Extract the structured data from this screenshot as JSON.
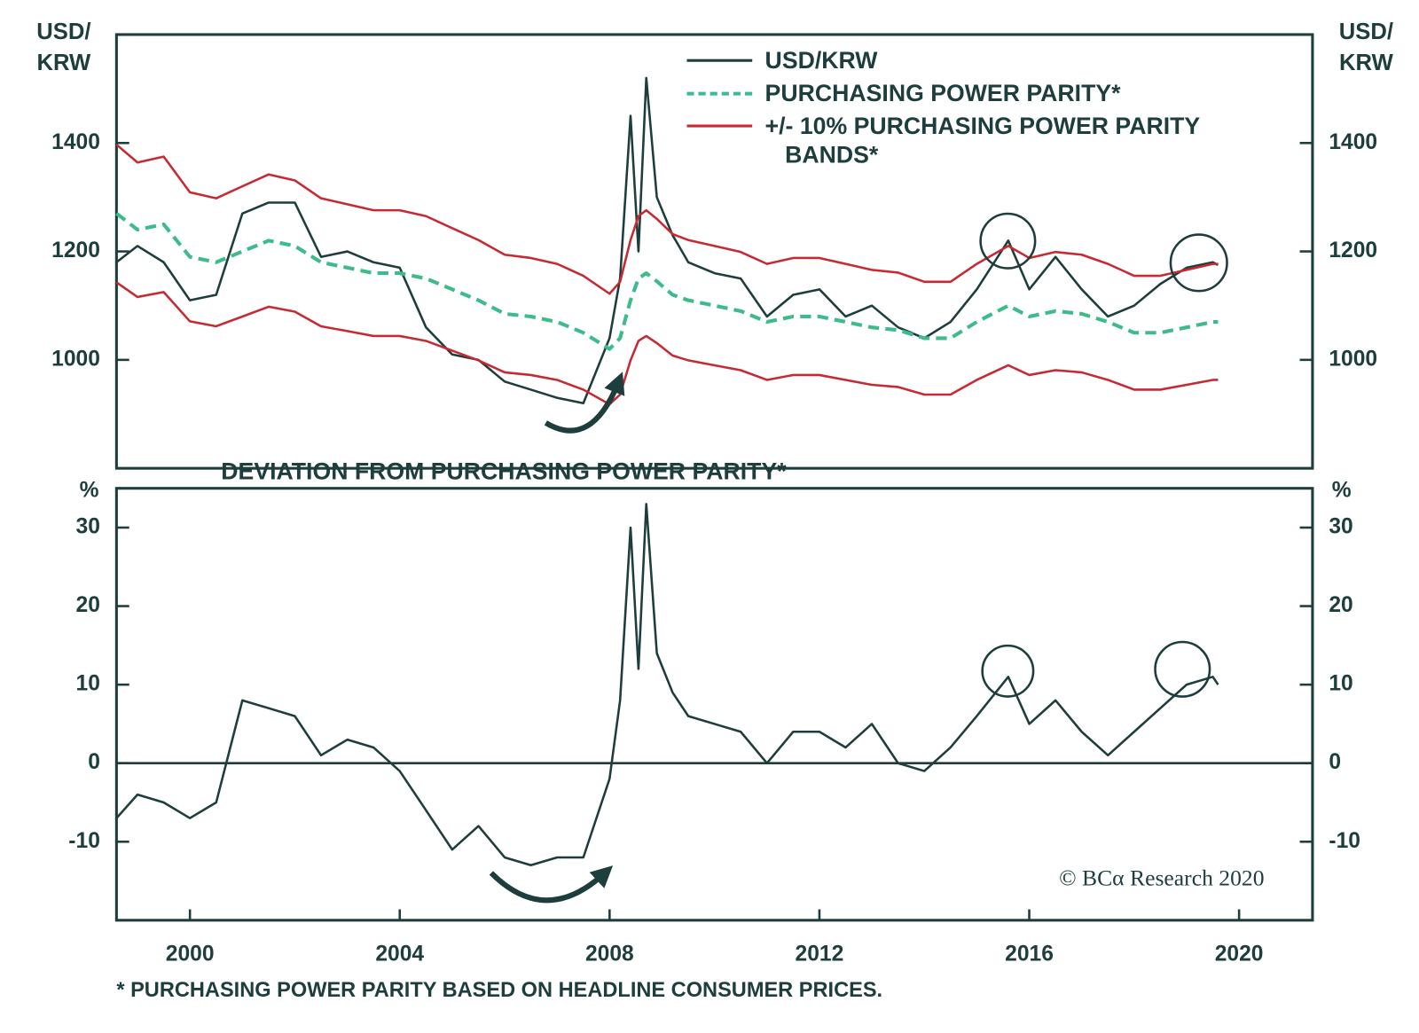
{
  "chart_data": [
    {
      "type": "line",
      "y_label": "USD/\nKRW",
      "xlim": [
        1998.6,
        2021.4
      ],
      "ylim": [
        800,
        1600
      ],
      "yticks": [
        1000,
        1200,
        1400
      ],
      "x": [
        1998.6,
        1999,
        1999.5,
        2000,
        2000.5,
        2001,
        2001.5,
        2002,
        2002.5,
        2003,
        2003.5,
        2004,
        2004.5,
        2005,
        2005.5,
        2006,
        2006.5,
        2007,
        2007.5,
        2008,
        2008.2,
        2008.4,
        2008.55,
        2008.7,
        2008.9,
        2009.2,
        2009.5,
        2010,
        2010.5,
        2011,
        2011.5,
        2012,
        2012.5,
        2013,
        2013.5,
        2014,
        2014.5,
        2015,
        2015.6,
        2016,
        2016.5,
        2017,
        2017.5,
        2018,
        2018.5,
        2019,
        2019.5,
        2019.6
      ],
      "series": [
        {
          "name": "USD/KRW",
          "color": "#1e3d3d",
          "dashed": false,
          "values": [
            1180,
            1210,
            1180,
            1110,
            1120,
            1270,
            1290,
            1290,
            1190,
            1200,
            1180,
            1170,
            1060,
            1010,
            1000,
            960,
            945,
            930,
            920,
            1040,
            1150,
            1450,
            1200,
            1520,
            1300,
            1230,
            1180,
            1160,
            1150,
            1080,
            1120,
            1130,
            1080,
            1100,
            1060,
            1040,
            1070,
            1130,
            1220,
            1130,
            1190,
            1130,
            1080,
            1100,
            1140,
            1170,
            1180,
            1175
          ]
        },
        {
          "name": "PURCHASING POWER PARITY*",
          "color": "#3dbb8a",
          "dashed": true,
          "values": [
            1270,
            1240,
            1250,
            1190,
            1180,
            1200,
            1220,
            1210,
            1180,
            1170,
            1160,
            1160,
            1150,
            1130,
            1110,
            1085,
            1080,
            1070,
            1050,
            1020,
            1040,
            1110,
            1150,
            1160,
            1145,
            1120,
            1110,
            1100,
            1090,
            1070,
            1080,
            1080,
            1070,
            1060,
            1055,
            1040,
            1040,
            1070,
            1100,
            1080,
            1090,
            1085,
            1070,
            1050,
            1050,
            1060,
            1070,
            1070
          ]
        },
        {
          "name": "+/- 10% PURCHASING POWER PARITY BANDS*",
          "color": "#c62a32",
          "dashed": false,
          "upper": [
            1397,
            1364,
            1375,
            1309,
            1298,
            1320,
            1342,
            1331,
            1298,
            1287,
            1276,
            1276,
            1265,
            1243,
            1221,
            1194,
            1188,
            1177,
            1155,
            1122,
            1144,
            1221,
            1265,
            1276,
            1260,
            1232,
            1221,
            1210,
            1199,
            1177,
            1188,
            1188,
            1177,
            1166,
            1161,
            1144,
            1144,
            1177,
            1210,
            1188,
            1199,
            1194,
            1177,
            1155,
            1155,
            1166,
            1177,
            1177
          ],
          "lower": [
            1143,
            1116,
            1125,
            1071,
            1062,
            1080,
            1098,
            1089,
            1062,
            1053,
            1044,
            1044,
            1035,
            1017,
            999,
            977,
            972,
            963,
            945,
            918,
            936,
            999,
            1035,
            1044,
            1031,
            1008,
            999,
            990,
            981,
            963,
            972,
            972,
            963,
            954,
            950,
            936,
            936,
            963,
            990,
            972,
            981,
            977,
            963,
            945,
            945,
            954,
            963,
            963
          ]
        }
      ]
    },
    {
      "type": "line",
      "title": "DEVIATION FROM PURCHASING POWER PARITY*",
      "y_label": "%",
      "xlim": [
        1998.6,
        2021.4
      ],
      "xticks": [
        2000,
        2004,
        2008,
        2012,
        2016,
        2020
      ],
      "ylim": [
        -20,
        35
      ],
      "yticks": [
        -10,
        0,
        10,
        20,
        30
      ],
      "zero_line": true,
      "x": [
        1998.6,
        1999,
        1999.5,
        2000,
        2000.5,
        2001,
        2001.5,
        2002,
        2002.5,
        2003,
        2003.5,
        2004,
        2004.5,
        2005,
        2005.5,
        2006,
        2006.5,
        2007,
        2007.5,
        2008,
        2008.2,
        2008.4,
        2008.55,
        2008.7,
        2008.9,
        2009.2,
        2009.5,
        2010,
        2010.5,
        2011,
        2011.5,
        2012,
        2012.5,
        2013,
        2013.5,
        2014,
        2014.5,
        2015,
        2015.6,
        2016,
        2016.5,
        2017,
        2017.5,
        2018,
        2018.5,
        2019,
        2019.5,
        2019.6
      ],
      "series": [
        {
          "color": "#1e3d3d",
          "dashed": false,
          "values": [
            -7,
            -4,
            -5,
            -7,
            -5,
            8,
            7,
            6,
            1,
            3,
            2,
            -1,
            -6,
            -11,
            -8,
            -12,
            -13,
            -12,
            -12,
            -2,
            8,
            30,
            12,
            33,
            14,
            9,
            6,
            5,
            4,
            0,
            4,
            4,
            2,
            5,
            0,
            -1,
            2,
            6,
            11,
            5,
            8,
            4,
            1,
            4,
            7,
            10,
            11,
            10
          ]
        }
      ],
      "credit": "© BCα Research 2020",
      "footnote": "* PURCHASING POWER PARITY BASED ON HEADLINE CONSUMER PRICES."
    }
  ]
}
